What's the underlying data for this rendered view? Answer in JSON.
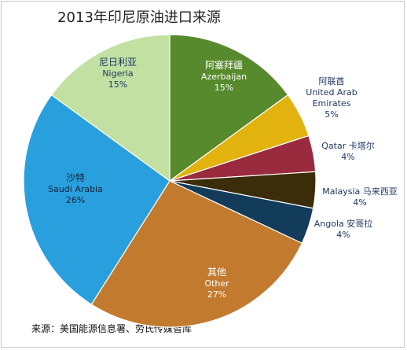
{
  "title": "2013年印尼原油进口来源",
  "source": "来源：美国能源信息署、劳氏传媒智库",
  "chart_data": {
    "type": "pie",
    "title": "2013年印尼原油进口来源",
    "start_angle_deg": 0,
    "direction": "clockwise",
    "slices": [
      {
        "zh": "阿塞拜疆",
        "en": "Azerbaijan",
        "value": 15,
        "label": "15%",
        "color": "#568a2c",
        "text_color": "#ffffff"
      },
      {
        "zh": "阿联酋",
        "en": "United Arab Emirates",
        "value": 5,
        "label": "5%",
        "color": "#e2b20f",
        "text_color": "#1f3864"
      },
      {
        "zh": "卡塔尔",
        "en": "Qatar",
        "value": 4,
        "label": "4%",
        "color": "#9a2a3d",
        "text_color": "#1f3864"
      },
      {
        "zh": "马来西亚",
        "en": "Malaysia",
        "value": 4,
        "label": "4%",
        "color": "#3b2d0a",
        "text_color": "#1f3864"
      },
      {
        "zh": "安哥拉",
        "en": "Angola",
        "value": 4,
        "label": "4%",
        "color": "#133c5a",
        "text_color": "#1f3864"
      },
      {
        "zh": "其他",
        "en": "Other",
        "value": 27,
        "label": "27%",
        "color": "#c27a2e",
        "text_color": "#ffffff"
      },
      {
        "zh": "沙特",
        "en": "Saudi Arabia",
        "value": 26,
        "label": "26%",
        "color": "#2a9fdd",
        "text_color": "#10243a"
      },
      {
        "zh": "尼日利亚",
        "en": "Nigeria",
        "value": 15,
        "label": "15%",
        "color": "#c2e0a2",
        "text_color": "#1f3864"
      }
    ]
  }
}
